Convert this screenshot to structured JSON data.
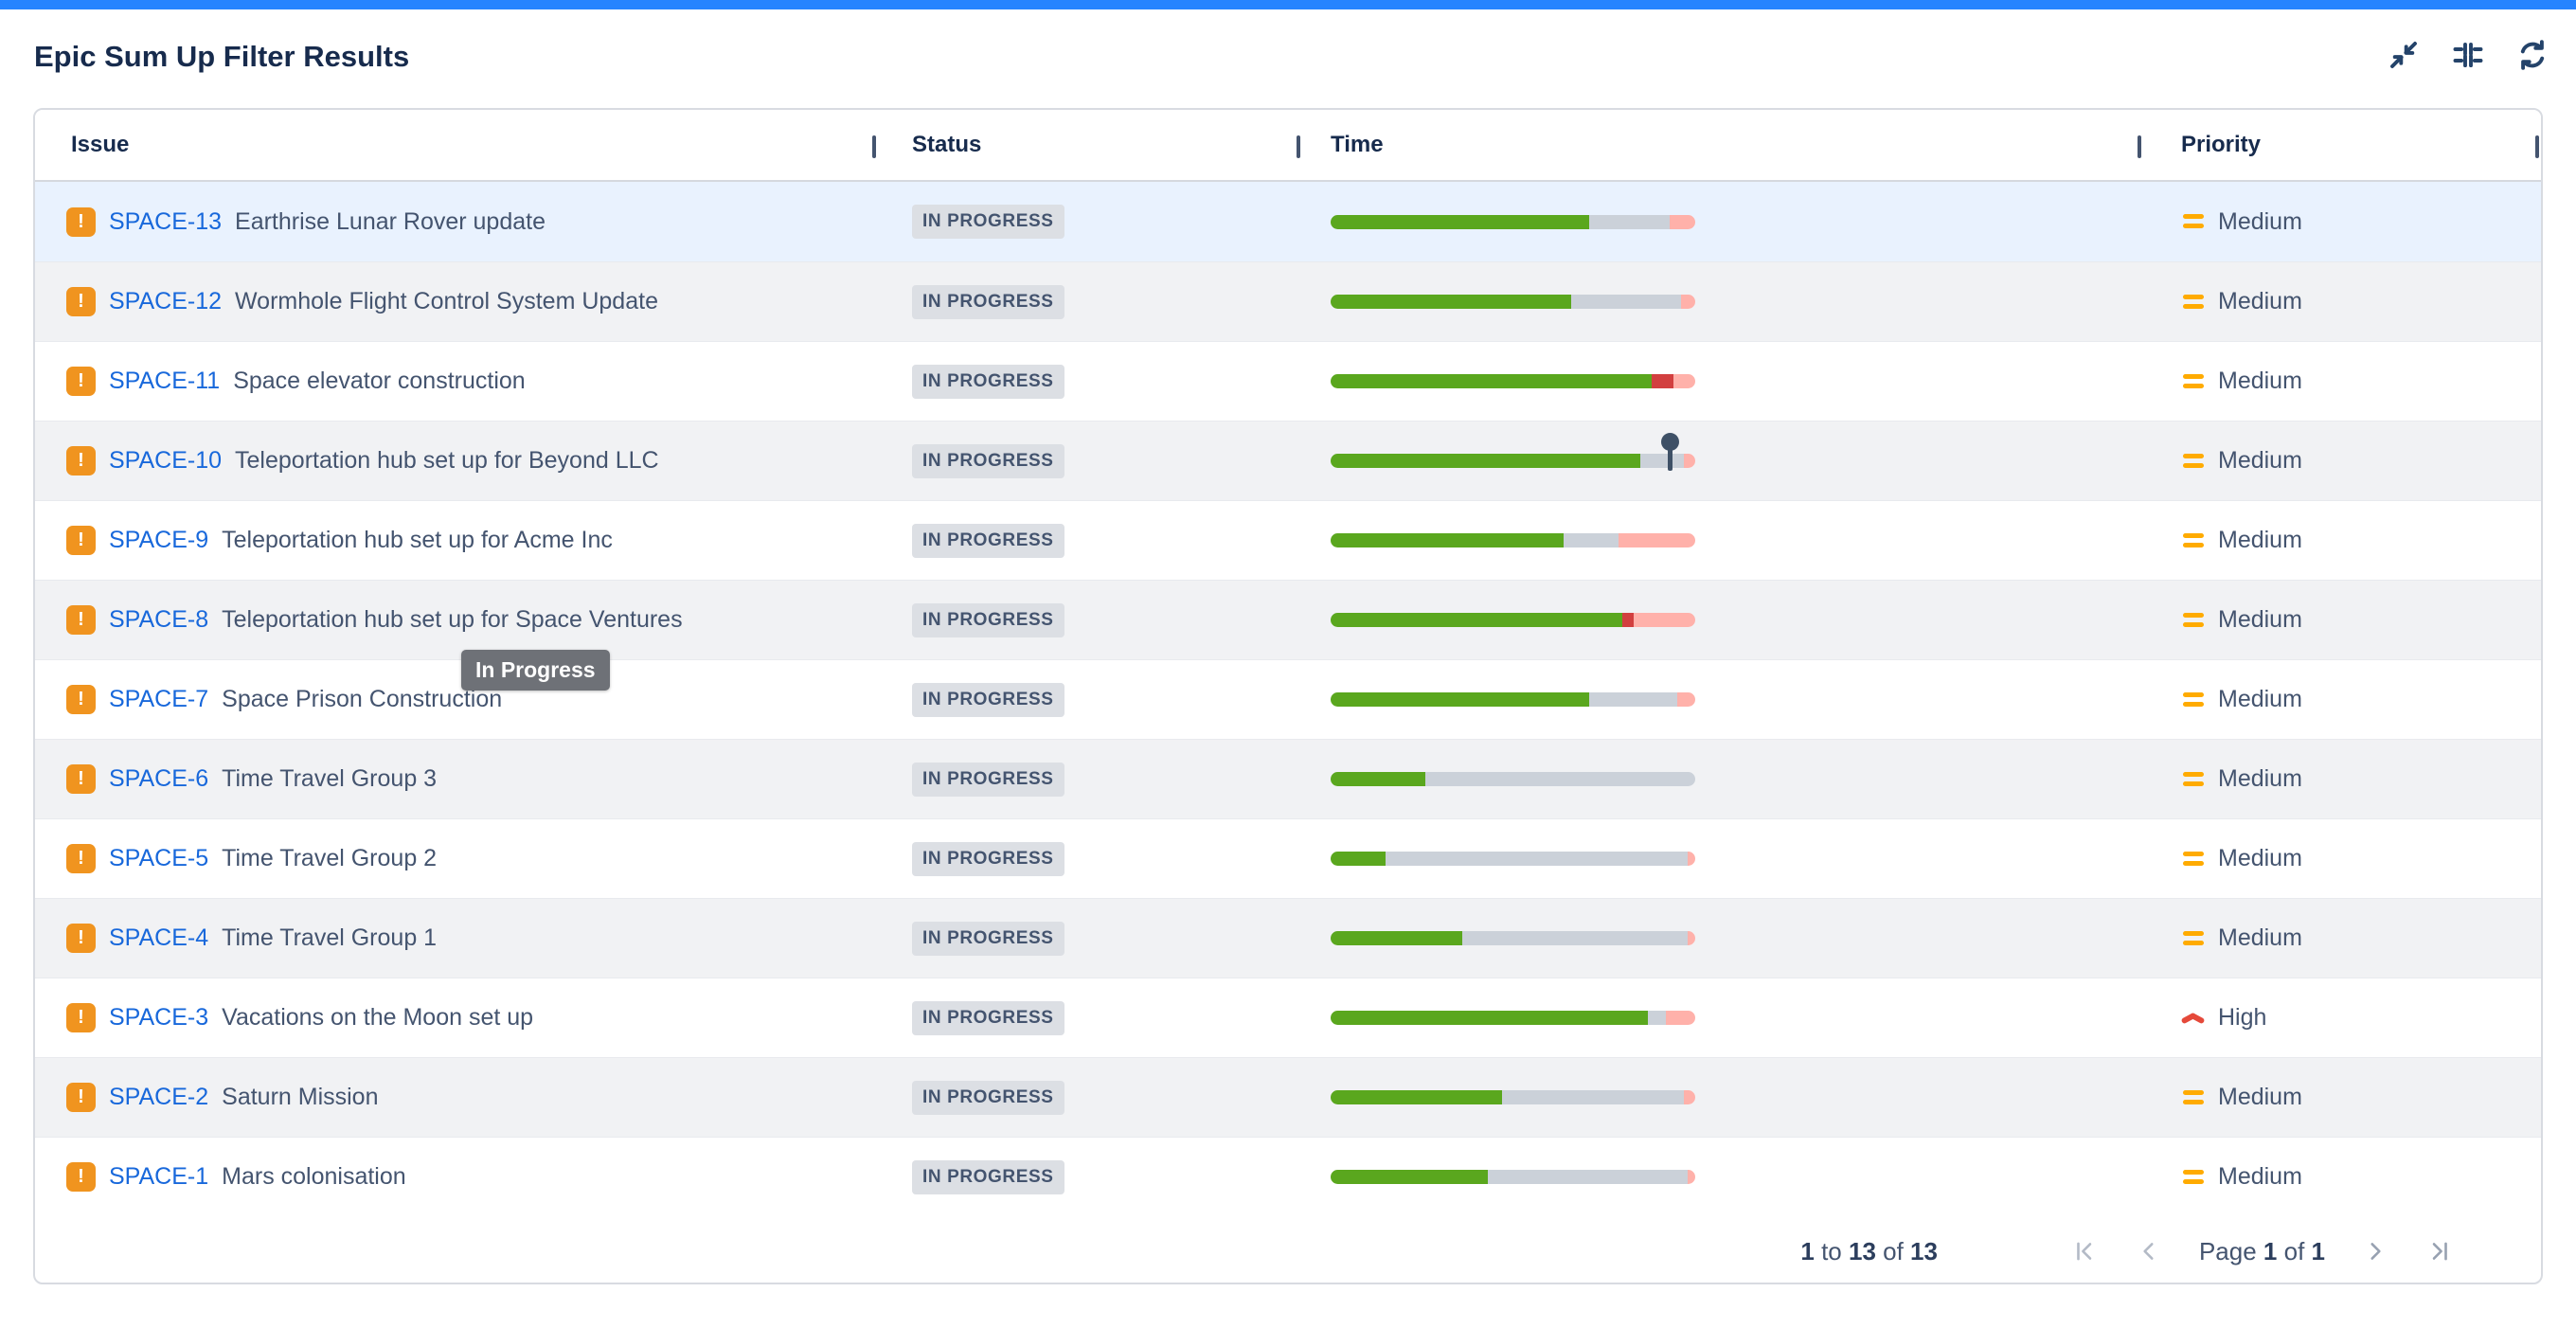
{
  "window": {
    "title": "Epic Sum Up Filter Results"
  },
  "toolbar": {
    "icons": [
      {
        "name": "collapse-icon"
      },
      {
        "name": "compress-icon"
      },
      {
        "name": "refresh-icon"
      }
    ]
  },
  "table": {
    "columns": {
      "issue": "Issue",
      "status": "Status",
      "time": "Time",
      "priority": "Priority"
    },
    "issue_type_icon": "exclamation-issue-icon",
    "issue_type_glyph": "!",
    "rows": [
      {
        "key": "SPACE-13",
        "summary": "Earthrise Lunar Rover update",
        "status": "IN PROGRESS",
        "priority": "Medium",
        "priority_level": "medium",
        "progress": [
          [
            "green",
            71
          ],
          [
            "gray",
            22
          ],
          [
            "pink",
            7
          ]
        ],
        "highlighted": true
      },
      {
        "key": "SPACE-12",
        "summary": "Wormhole Flight Control System Update",
        "status": "IN PROGRESS",
        "priority": "Medium",
        "priority_level": "medium",
        "progress": [
          [
            "green",
            66
          ],
          [
            "gray",
            30
          ],
          [
            "pink",
            4
          ]
        ]
      },
      {
        "key": "SPACE-11",
        "summary": "Space elevator construction",
        "status": "IN PROGRESS",
        "priority": "Medium",
        "priority_level": "medium",
        "progress": [
          [
            "green",
            88
          ],
          [
            "red",
            6
          ],
          [
            "pink",
            6
          ]
        ]
      },
      {
        "key": "SPACE-10",
        "summary": "Teleportation hub set up for Beyond LLC",
        "status": "IN PROGRESS",
        "priority": "Medium",
        "priority_level": "medium",
        "progress": [
          [
            "green",
            85
          ],
          [
            "gray",
            12
          ],
          [
            "pink",
            3
          ]
        ],
        "pin": 93
      },
      {
        "key": "SPACE-9",
        "summary": "Teleportation hub set up for Acme Inc",
        "status": "IN PROGRESS",
        "priority": "Medium",
        "priority_level": "medium",
        "progress": [
          [
            "green",
            64
          ],
          [
            "gray",
            15
          ],
          [
            "pink",
            21
          ]
        ]
      },
      {
        "key": "SPACE-8",
        "summary": "Teleportation hub set up for Space Ventures",
        "status": "IN PROGRESS",
        "priority": "Medium",
        "priority_level": "medium",
        "progress": [
          [
            "green",
            80
          ],
          [
            "red",
            3
          ],
          [
            "pink",
            17
          ]
        ]
      },
      {
        "key": "SPACE-7",
        "summary": "Space Prison Construction",
        "status": "IN PROGRESS",
        "priority": "Medium",
        "priority_level": "medium",
        "progress": [
          [
            "green",
            71
          ],
          [
            "gray",
            24
          ],
          [
            "pink",
            5
          ]
        ]
      },
      {
        "key": "SPACE-6",
        "summary": "Time Travel Group 3",
        "status": "IN PROGRESS",
        "priority": "Medium",
        "priority_level": "medium",
        "progress": [
          [
            "green",
            26
          ],
          [
            "gray",
            74
          ]
        ]
      },
      {
        "key": "SPACE-5",
        "summary": "Time Travel Group 2",
        "status": "IN PROGRESS",
        "priority": "Medium",
        "priority_level": "medium",
        "progress": [
          [
            "green",
            15
          ],
          [
            "gray",
            83
          ],
          [
            "pink",
            2
          ]
        ]
      },
      {
        "key": "SPACE-4",
        "summary": "Time Travel Group 1",
        "status": "IN PROGRESS",
        "priority": "Medium",
        "priority_level": "medium",
        "progress": [
          [
            "green",
            36
          ],
          [
            "gray",
            62
          ],
          [
            "pink",
            2
          ]
        ]
      },
      {
        "key": "SPACE-3",
        "summary": "Vacations on the Moon set up",
        "status": "IN PROGRESS",
        "priority": "High",
        "priority_level": "high",
        "progress": [
          [
            "green",
            87
          ],
          [
            "gray",
            5
          ],
          [
            "pink",
            8
          ]
        ]
      },
      {
        "key": "SPACE-2",
        "summary": "Saturn Mission",
        "status": "IN PROGRESS",
        "priority": "Medium",
        "priority_level": "medium",
        "progress": [
          [
            "green",
            47
          ],
          [
            "gray",
            50
          ],
          [
            "pink",
            3
          ]
        ]
      },
      {
        "key": "SPACE-1",
        "summary": "Mars colonisation",
        "status": "IN PROGRESS",
        "priority": "Medium",
        "priority_level": "medium",
        "progress": [
          [
            "green",
            43
          ],
          [
            "gray",
            55
          ],
          [
            "pink",
            2
          ]
        ]
      }
    ]
  },
  "tooltip": {
    "text": "In Progress"
  },
  "pagination": {
    "range": {
      "start": "1",
      "to": " to ",
      "end": "13",
      "of": " of ",
      "total": "13"
    },
    "page": {
      "label": "Page ",
      "current": "1",
      "of": " of ",
      "total": "1"
    },
    "icons": [
      "first-page",
      "previous-page",
      "next-page",
      "last-page"
    ]
  },
  "colors": {
    "accent_blue": "#2684FF",
    "link": "#1868DB",
    "green": "#5AA71E",
    "track_gray": "#CBD1D9",
    "pink": "#FFB1AA",
    "red": "#D23F3F",
    "badge_bg": "#DCDFE4",
    "medium_orange": "#FFAB00",
    "high_red": "#E5493A",
    "row_hover": "#E9F2FE",
    "row_alt": "#F1F2F4"
  }
}
